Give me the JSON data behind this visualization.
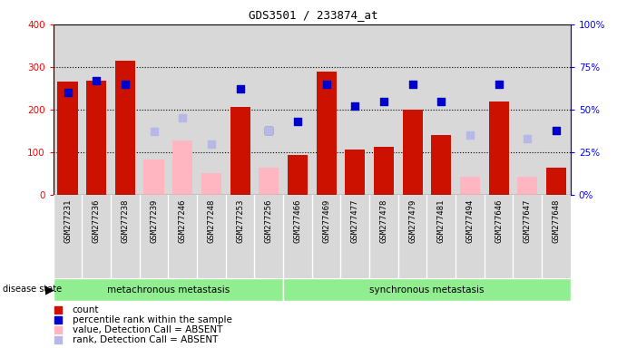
{
  "title": "GDS3501 / 233874_at",
  "samples": [
    "GSM277231",
    "GSM277236",
    "GSM277238",
    "GSM277239",
    "GSM277246",
    "GSM277248",
    "GSM277253",
    "GSM277256",
    "GSM277466",
    "GSM277469",
    "GSM277477",
    "GSM277478",
    "GSM277479",
    "GSM277481",
    "GSM277494",
    "GSM277646",
    "GSM277647",
    "GSM277648"
  ],
  "count_values": [
    265,
    268,
    315,
    null,
    null,
    null,
    207,
    null,
    93,
    290,
    107,
    113,
    200,
    140,
    null,
    220,
    null,
    63
  ],
  "absent_value": [
    null,
    null,
    null,
    83,
    127,
    52,
    null,
    63,
    null,
    null,
    null,
    null,
    null,
    null,
    43,
    null,
    43,
    null
  ],
  "percentile_rank": [
    60,
    67,
    65,
    null,
    null,
    null,
    62,
    38,
    43,
    65,
    52,
    55,
    65,
    55,
    null,
    65,
    null,
    38
  ],
  "absent_rank": [
    null,
    null,
    null,
    37,
    45,
    30,
    null,
    38,
    null,
    null,
    null,
    null,
    null,
    null,
    35,
    null,
    33,
    null
  ],
  "ylim_left": [
    0,
    400
  ],
  "ylim_right": [
    0,
    100
  ],
  "yticks_left": [
    0,
    100,
    200,
    300,
    400
  ],
  "ytick_labels_left": [
    "0",
    "100",
    "200",
    "300",
    "400"
  ],
  "yticks_right": [
    0,
    25,
    50,
    75,
    100
  ],
  "ytick_labels_right": [
    "0%",
    "25%",
    "50%",
    "75%",
    "100%"
  ],
  "grid_values": [
    100,
    200,
    300
  ],
  "bar_color": "#cc1100",
  "absent_bar_color": "#ffb6c1",
  "rank_color": "#0000cc",
  "absent_rank_color": "#b8b8e8",
  "col_bg_color": "#d8d8d8",
  "group1_label": "metachronous metastasis",
  "group1_range": [
    0,
    8
  ],
  "group2_label": "synchronous metastasis",
  "group2_range": [
    8,
    18
  ],
  "group_color": "#90ee90",
  "legend_items": [
    {
      "color": "#cc1100",
      "label": "count"
    },
    {
      "color": "#0000cc",
      "label": "percentile rank within the sample"
    },
    {
      "color": "#ffb6c1",
      "label": "value, Detection Call = ABSENT"
    },
    {
      "color": "#b8b8e8",
      "label": "rank, Detection Call = ABSENT"
    }
  ]
}
